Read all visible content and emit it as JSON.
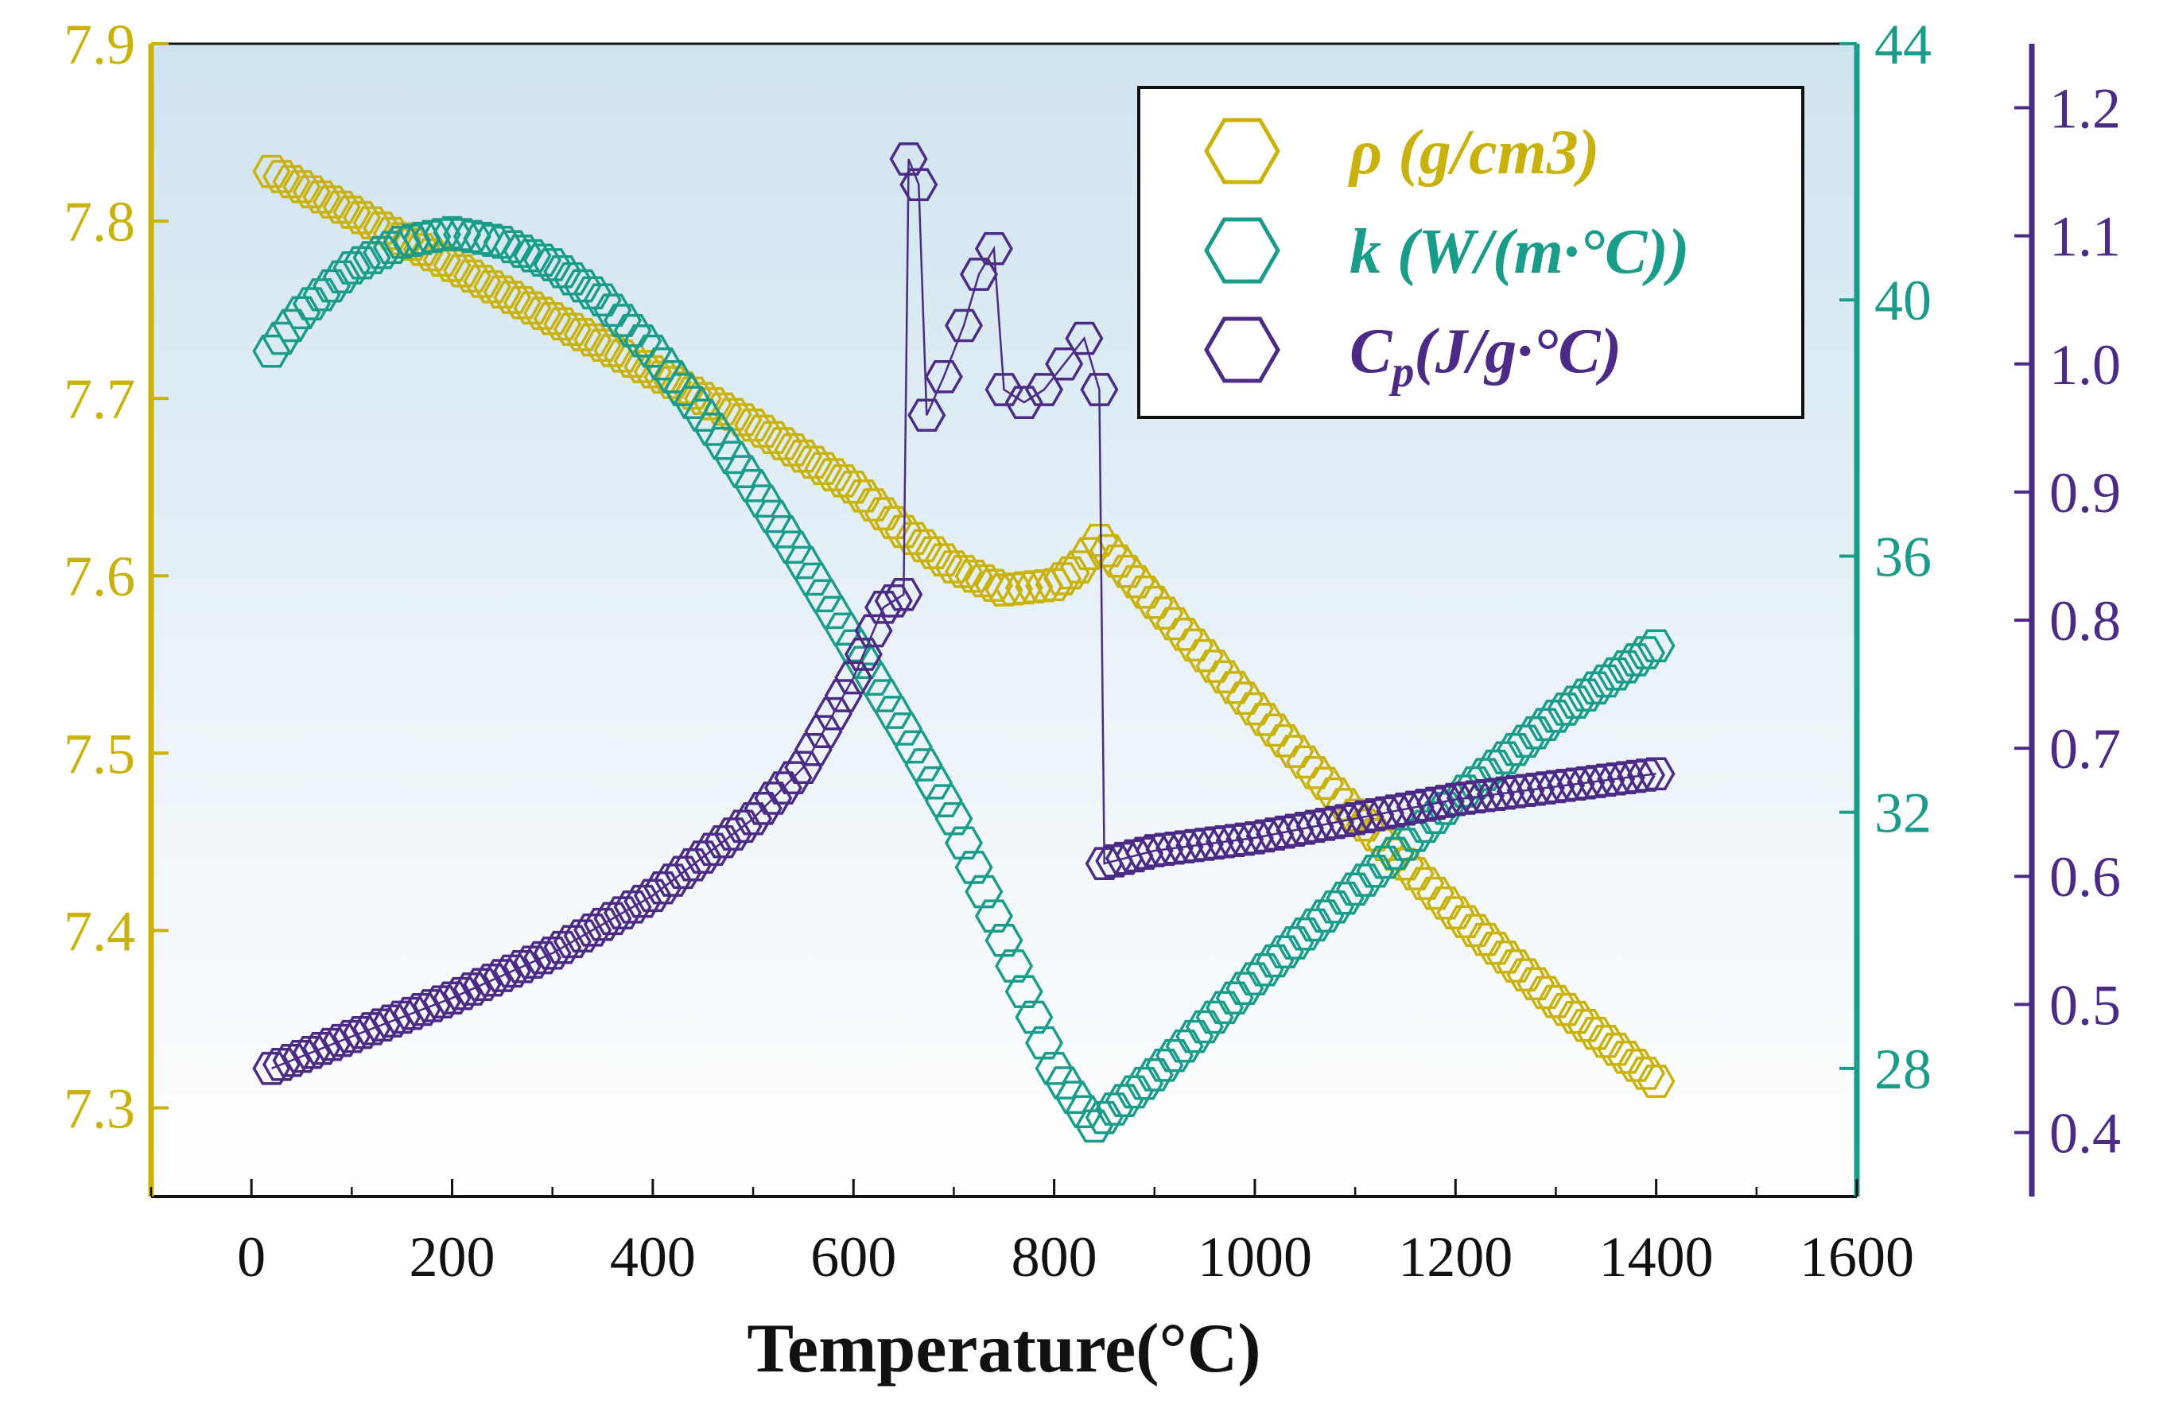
{
  "colors": {
    "rho": "#c9b20b",
    "k": "#1a9c8a",
    "cp": "#4b2b86",
    "frame": "#111111",
    "bg_top": "#cfe3ef",
    "bg_bottom": "#ffffff"
  },
  "chart_data": {
    "type": "scatter",
    "title": "",
    "xlabel": "Temperature(°C)",
    "xlim": [
      -100,
      1600
    ],
    "xticks": [
      0,
      200,
      400,
      600,
      800,
      1000,
      1200,
      1400,
      1600
    ],
    "axes": {
      "rho": {
        "ylim": [
          7.25,
          7.9
        ],
        "ticks": [
          "7.3",
          "7.4",
          "7.5",
          "7.6",
          "7.7",
          "7.8",
          "7.9"
        ]
      },
      "k": {
        "ylim": [
          26,
          44
        ],
        "ticks": [
          "28",
          "32",
          "36",
          "40",
          "44"
        ]
      },
      "cp": {
        "ylim": [
          0.35,
          1.25
        ],
        "ticks": [
          "0.4",
          "0.5",
          "0.6",
          "0.7",
          "0.8",
          "0.9",
          "1.0",
          "1.1",
          "1.2"
        ]
      }
    },
    "legend": {
      "position": "top-right",
      "entries": [
        {
          "series": "rho",
          "label": "ρ (g/cm3)"
        },
        {
          "series": "k",
          "label": "k (W/(m·°C))"
        },
        {
          "series": "cp",
          "label_main": "C",
          "label_sub": "p",
          "label_rest": "(J/g·°C)"
        }
      ]
    },
    "series": [
      {
        "name": "rho",
        "axis": "rho",
        "marker": "hexagon",
        "points": [
          [
            20,
            7.828
          ],
          [
            100,
            7.805
          ],
          [
            200,
            7.775
          ],
          [
            300,
            7.745
          ],
          [
            400,
            7.715
          ],
          [
            500,
            7.685
          ],
          [
            600,
            7.65
          ],
          [
            650,
            7.625
          ],
          [
            700,
            7.605
          ],
          [
            750,
            7.592
          ],
          [
            800,
            7.595
          ],
          [
            825,
            7.605
          ],
          [
            845,
            7.62
          ],
          [
            900,
            7.585
          ],
          [
            1000,
            7.525
          ],
          [
            1100,
            7.465
          ],
          [
            1200,
            7.41
          ],
          [
            1300,
            7.36
          ],
          [
            1400,
            7.315
          ]
        ]
      },
      {
        "name": "k",
        "axis": "k",
        "marker": "hexagon",
        "points": [
          [
            20,
            39.2
          ],
          [
            50,
            39.8
          ],
          [
            100,
            40.5
          ],
          [
            150,
            40.9
          ],
          [
            200,
            41.05
          ],
          [
            250,
            40.9
          ],
          [
            300,
            40.55
          ],
          [
            350,
            40.0
          ],
          [
            400,
            39.2
          ],
          [
            450,
            38.2
          ],
          [
            500,
            37.1
          ],
          [
            550,
            35.9
          ],
          [
            600,
            34.6
          ],
          [
            650,
            33.3
          ],
          [
            700,
            31.9
          ],
          [
            750,
            30.0
          ],
          [
            800,
            28.0
          ],
          [
            840,
            27.1
          ],
          [
            900,
            27.9
          ],
          [
            1000,
            29.4
          ],
          [
            1100,
            30.8
          ],
          [
            1200,
            32.2
          ],
          [
            1300,
            33.5
          ],
          [
            1400,
            34.6
          ]
        ]
      },
      {
        "name": "cp",
        "axis": "cp",
        "marker": "hexagon",
        "points": [
          [
            20,
            0.45
          ],
          [
            100,
            0.475
          ],
          [
            200,
            0.505
          ],
          [
            300,
            0.54
          ],
          [
            400,
            0.585
          ],
          [
            500,
            0.645
          ],
          [
            550,
            0.685
          ],
          [
            600,
            0.755
          ],
          [
            630,
            0.81
          ],
          [
            650,
            0.82
          ],
          [
            655,
            1.16
          ],
          [
            665,
            1.14
          ],
          [
            673,
            0.96
          ],
          [
            690,
            0.99
          ],
          [
            710,
            1.03
          ],
          [
            725,
            1.07
          ],
          [
            740,
            1.09
          ],
          [
            750,
            0.98
          ],
          [
            770,
            0.97
          ],
          [
            790,
            0.98
          ],
          [
            810,
            1.0
          ],
          [
            830,
            1.02
          ],
          [
            845,
            0.98
          ],
          [
            850,
            0.61
          ],
          [
            900,
            0.62
          ],
          [
            1000,
            0.63
          ],
          [
            1100,
            0.645
          ],
          [
            1200,
            0.66
          ],
          [
            1300,
            0.67
          ],
          [
            1400,
            0.68
          ]
        ]
      }
    ]
  }
}
